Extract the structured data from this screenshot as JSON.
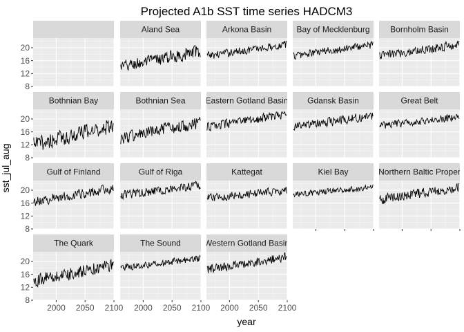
{
  "chart_data": {
    "type": "line",
    "title": "Projected A1b SST time series HADCM3",
    "xlabel": "year",
    "ylabel": "sst_jul_aug",
    "xlim": [
      1960,
      2100
    ],
    "ylim": [
      8,
      23
    ],
    "x_ticks": [
      2000,
      2050,
      2100
    ],
    "y_ticks": [
      8,
      12,
      16,
      20
    ],
    "grid": true,
    "facet_order": [
      "",
      "Aland Sea",
      "Arkona Basin",
      "Bay of Mecklenburg",
      "Bornholm Basin",
      "Bothnian Bay",
      "Bothnian Sea",
      "Eastern Gotland Basin",
      "Gdansk Basin",
      "Great Belt",
      "Gulf of Finland",
      "Gulf of Riga",
      "Kattegat",
      "Kiel Bay",
      "Northern Baltic Proper",
      "The Quark",
      "The Sound",
      "Western Gotland Basin"
    ],
    "year_range": [
      1961,
      2099
    ],
    "series": [
      {
        "name": "",
        "values": []
      },
      {
        "name": "Aland Sea",
        "start": 14.0,
        "end": 19.0,
        "amplitude": 2.6
      },
      {
        "name": "Arkona Basin",
        "start": 17.5,
        "end": 21.0,
        "amplitude": 1.6
      },
      {
        "name": "Bay of Mecklenburg",
        "start": 17.5,
        "end": 21.0,
        "amplitude": 1.6
      },
      {
        "name": "Bornholm Basin",
        "start": 17.5,
        "end": 21.0,
        "amplitude": 1.8
      },
      {
        "name": "Bothnian Bay",
        "start": 12.0,
        "end": 18.0,
        "amplitude": 3.2
      },
      {
        "name": "Bothnian Sea",
        "start": 14.0,
        "end": 19.0,
        "amplitude": 2.6
      },
      {
        "name": "Eastern Gotland Basin",
        "start": 17.5,
        "end": 21.5,
        "amplitude": 1.8
      },
      {
        "name": "Gdansk Basin",
        "start": 17.5,
        "end": 21.0,
        "amplitude": 1.8
      },
      {
        "name": "Great Belt",
        "start": 18.0,
        "end": 20.5,
        "amplitude": 1.5
      },
      {
        "name": "Gulf of Finland",
        "start": 16.5,
        "end": 20.5,
        "amplitude": 2.0
      },
      {
        "name": "Gulf of Riga",
        "start": 18.5,
        "end": 21.5,
        "amplitude": 1.8
      },
      {
        "name": "Kattegat",
        "start": 17.5,
        "end": 20.0,
        "amplitude": 1.6
      },
      {
        "name": "Kiel Bay",
        "start": 18.5,
        "end": 21.0,
        "amplitude": 1.2
      },
      {
        "name": "Northern Baltic Proper",
        "start": 17.0,
        "end": 21.0,
        "amplitude": 2.0
      },
      {
        "name": "The Quark",
        "start": 14.0,
        "end": 19.0,
        "amplitude": 2.6
      },
      {
        "name": "The Sound",
        "start": 18.0,
        "end": 21.0,
        "amplitude": 1.4
      },
      {
        "name": "Western Gotland Basin",
        "start": 17.5,
        "end": 21.5,
        "amplitude": 1.8
      }
    ]
  }
}
